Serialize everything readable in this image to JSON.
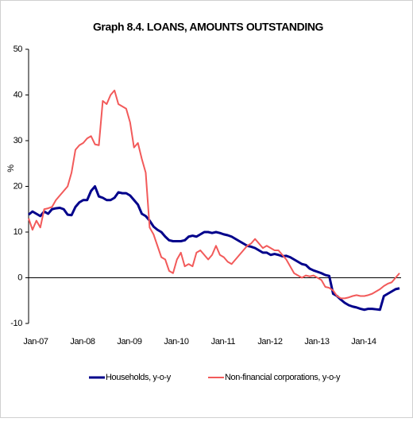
{
  "chart_data": {
    "type": "line",
    "title": "Graph 8.4. LOANS, AMOUNTS OUTSTANDING",
    "y_label": "%",
    "categories": [
      "Jan-07",
      null,
      null,
      null,
      null,
      null,
      null,
      null,
      null,
      null,
      null,
      null,
      "Jan-08",
      null,
      null,
      null,
      null,
      null,
      null,
      null,
      null,
      null,
      null,
      null,
      "Jan-09",
      null,
      null,
      null,
      null,
      null,
      null,
      null,
      null,
      null,
      null,
      null,
      "Jan-10",
      null,
      null,
      null,
      null,
      null,
      null,
      null,
      null,
      null,
      null,
      null,
      "Jan-11",
      null,
      null,
      null,
      null,
      null,
      null,
      null,
      null,
      null,
      null,
      null,
      "Jan-12",
      null,
      null,
      null,
      null,
      null,
      null,
      null,
      null,
      null,
      null,
      null,
      "Jan-13",
      null,
      null,
      null,
      null,
      null,
      null,
      null,
      null,
      null,
      null,
      null,
      "Jan-14",
      null,
      null,
      null,
      null,
      null,
      null,
      null,
      null,
      null,
      null,
      null
    ],
    "series": [
      {
        "name": "Households, y-o-y",
        "color": "#00008b",
        "width": 3,
        "values": [
          13.8,
          14.5,
          14,
          13.5,
          14.5,
          14,
          15,
          15.2,
          15.3,
          15,
          13.8,
          13.7,
          15.5,
          16.5,
          17,
          17,
          19,
          20,
          17.8,
          17.5,
          17,
          17,
          17.5,
          18.7,
          18.5,
          18.5,
          18,
          17,
          16,
          14,
          13.5,
          12.5,
          11.2,
          10.5,
          10,
          9,
          8.2,
          8,
          8,
          8,
          8.2,
          9,
          9.2,
          9,
          9.5,
          10,
          10,
          9.8,
          10,
          9.8,
          9.5,
          9.3,
          9,
          8.5,
          8,
          7.5,
          7,
          6.8,
          6.5,
          6,
          5.5,
          5.5,
          5,
          5.2,
          5,
          4.7,
          4.8,
          4.5,
          4,
          3.5,
          3,
          2.8,
          2,
          1.6,
          1.3,
          1,
          0.6,
          0.4,
          -3.5,
          -4,
          -4.8,
          -5.5,
          -6,
          -6.3,
          -6.5,
          -6.8,
          -7,
          -6.8,
          -6.8,
          -6.9,
          -7,
          -4,
          -3.5,
          -3,
          -2.5,
          -2.3
        ]
      },
      {
        "name": "Non-financial corporations, y-o-y",
        "color": "#f25a5a",
        "width": 2,
        "values": [
          13,
          10.5,
          12.5,
          11,
          15,
          15.2,
          15.5,
          17,
          18,
          19,
          20,
          23,
          28,
          29,
          29.5,
          30.5,
          31,
          29.2,
          29,
          38.7,
          38,
          40,
          41,
          38,
          37.5,
          37,
          34,
          28.5,
          29.5,
          26,
          23,
          11,
          9.5,
          7,
          4.5,
          4,
          1.5,
          1,
          4,
          5.5,
          2.5,
          3,
          2.5,
          5.5,
          6,
          5,
          4,
          5,
          7,
          5,
          4.5,
          3.5,
          3,
          4,
          5,
          6,
          7,
          7.5,
          8.5,
          7.5,
          6.5,
          7,
          6.5,
          6,
          6,
          5,
          4,
          2.5,
          1,
          0.5,
          0,
          0.5,
          0.3,
          0.5,
          0,
          -0.5,
          -2,
          -2.2,
          -2.8,
          -4,
          -4.5,
          -4.5,
          -4.3,
          -4,
          -3.8,
          -4,
          -4,
          -3.8,
          -3.5,
          -3,
          -2.5,
          -1.8,
          -1.3,
          -1,
          0,
          1
        ]
      }
    ],
    "ylim": [
      -10,
      50
    ],
    "yticks": [
      -10,
      0,
      10,
      20,
      30,
      40,
      50
    ],
    "zero_line": true,
    "legend": "bottom"
  }
}
